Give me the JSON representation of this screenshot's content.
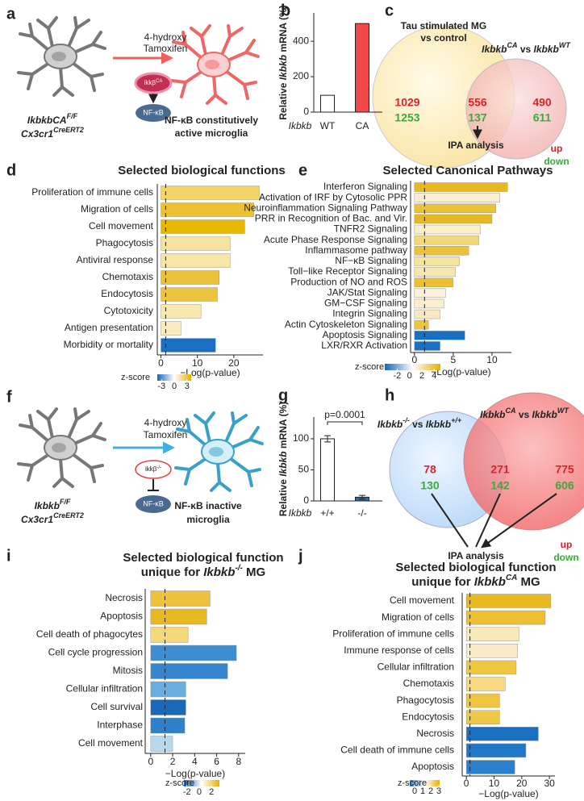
{
  "figure": {
    "a": {
      "label": "a",
      "treatment": [
        "4-hydroxy",
        "Tamoxifen"
      ],
      "gene_badge": [
        "ikkβ",
        "CA"
      ],
      "nfkb": "NF-κB",
      "genotype": [
        [
          "IkbkbCA",
          "F/F"
        ],
        [
          "Cx3cr1",
          "CreERT2"
        ]
      ],
      "outcome": [
        "NF-κB constitutively",
        "active microglia"
      ]
    },
    "c": {
      "label": "c",
      "left_title": [
        "Tau stimulated MG",
        "vs control"
      ],
      "right_title": [
        "Ikbkb",
        "CA",
        " vs ",
        "Ikbkb",
        "WT"
      ],
      "left": [
        1029,
        1253
      ],
      "both": [
        556,
        137
      ],
      "right": [
        490,
        611
      ],
      "legend": [
        "up",
        "down"
      ],
      "analysis": "IPA analysis"
    },
    "f": {
      "label": "f",
      "treatment": [
        "4-hydroxy",
        "Tamoxifen"
      ],
      "gene_badge": [
        "ikkβ",
        "-/-"
      ],
      "nfkb": "NF-κB",
      "genotype": [
        [
          "Ikbkb",
          "F/F"
        ],
        [
          "Cx3cr1",
          "CreERT2"
        ]
      ],
      "outcome": [
        "NF-κB inactive",
        "microglia"
      ]
    },
    "h": {
      "label": "h",
      "left_title": [
        "Ikbkb",
        "-/-",
        " vs ",
        "Ikbkb",
        "+/+"
      ],
      "right_title": [
        "Ikbkb",
        "CA",
        " vs ",
        "Ikbkb",
        "WT"
      ],
      "left": [
        78,
        130
      ],
      "both": [
        271,
        142
      ],
      "right": [
        775,
        606
      ],
      "legend": [
        "up",
        "down"
      ],
      "analysis": "IPA analysis"
    }
  },
  "chart_data": [
    {
      "panel": "b",
      "type": "bar",
      "ylabel": [
        "Relative ",
        "Ikbkb",
        " mRNA (%)"
      ],
      "xlabel": "Ikbkb",
      "categories": [
        "WT",
        "CA"
      ],
      "values": [
        95,
        500
      ],
      "colors": [
        "#ffffff",
        "#f04848"
      ],
      "ylim": [
        0,
        560
      ],
      "yticks": [
        0,
        200,
        400
      ]
    },
    {
      "panel": "d",
      "type": "barh",
      "title": "Selected biological functions",
      "categories": [
        "Proliferation of immune cells",
        "Migration of cells",
        "Cell movement",
        "Phagocytosis",
        "Antiviral response",
        "Chemotaxis",
        "Endocytosis",
        "Cytotoxicity",
        "Antigen presentation",
        "Morbidity or mortality"
      ],
      "values": [
        27,
        25.5,
        23,
        19,
        19,
        16,
        15.5,
        11,
        5.5,
        15
      ],
      "colors": [
        "#f2d46a",
        "#ecc232",
        "#e8b800",
        "#f7e3a0",
        "#f8e6a8",
        "#ebc23a",
        "#ecc440",
        "#f9e8b0",
        "#faecc0",
        "#1a6fc0"
      ],
      "xlim": [
        -1,
        28
      ],
      "xticks": [
        0,
        10,
        20
      ],
      "xlabel": "−Log(p-value)",
      "threshold": 1.3,
      "colorbar": {
        "label": "z-score",
        "lim": [
          -4,
          4
        ],
        "ticks": [
          -3,
          0,
          3
        ],
        "colors": [
          "#1565c0",
          "#ffffff",
          "#e6b000"
        ]
      }
    },
    {
      "panel": "e",
      "type": "barh",
      "title": "Selected Canonical Pathways",
      "categories": [
        "Interferon Signaling",
        "Activation of IRF by Cytosolic PPR",
        "Neuroinflammation Signaling Pathway",
        "PRR in Recognition of Bac. and Vir.",
        "TNFR2 Signaling",
        "Acute Phase Response Signaling",
        "Inflammasome pathway",
        "NF−κB Signaling",
        "Toll−like Receptor Signaling",
        "Production of NO and ROS",
        "JAK/Stat Signaling",
        "GM−CSF Signaling",
        "Integrin Signaling",
        "Actin Cytoskeleton Signaling",
        "Apoptosis Signaling",
        "LXR/RXR Activation"
      ],
      "values": [
        12,
        11,
        10.5,
        10,
        8.5,
        8.3,
        7,
        5.8,
        5.3,
        5,
        4,
        3.8,
        3.3,
        1.8,
        6.5,
        3.3
      ],
      "colors": [
        "#e8b820",
        "#f9eed0",
        "#ecc23a",
        "#e8b820",
        "#fbefc8",
        "#f5d878",
        "#ecc23a",
        "#f7e3a0",
        "#f8e6b0",
        "#edc030",
        "#fbf0d8",
        "#fbefd0",
        "#f9e8c0",
        "#ecc440",
        "#1a70c0",
        "#1a70c0"
      ],
      "xlim": [
        -0.5,
        12.5
      ],
      "xticks": [
        0,
        5,
        10
      ],
      "xlabel": "−Log(p-value)",
      "threshold": 1.3,
      "colorbar": {
        "label": "z-score",
        "lim": [
          -4,
          5
        ],
        "ticks": [
          -2,
          0,
          2,
          4
        ],
        "colors": [
          "#1565c0",
          "#ffffff",
          "#e6b000"
        ]
      }
    },
    {
      "panel": "g",
      "type": "bar",
      "ylabel": [
        "Relative ",
        "Ikbkb",
        " mRNA (%)"
      ],
      "xlabel": "Ikbkb",
      "categories": [
        "+/+",
        "-/-"
      ],
      "values": [
        100,
        6
      ],
      "errors": [
        5,
        3
      ],
      "colors": [
        "#ffffff",
        "#1f6fc0"
      ],
      "ylim": [
        0,
        135
      ],
      "yticks": [
        0,
        50,
        100
      ],
      "annotation": "p=0.0001"
    },
    {
      "panel": "i",
      "type": "barh",
      "title": [
        "Selected biological function",
        "unique for ",
        "Ikbkb",
        "-/-",
        " MG"
      ],
      "categories": [
        "Necrosis",
        "Apoptosis",
        "Cell death of phagocytes",
        "Cell cycle progression",
        "Mitosis",
        "Cellular infiltration",
        "Cell survival",
        "Interphase",
        "Cell movement"
      ],
      "values": [
        5.4,
        5.1,
        3.4,
        7.8,
        7,
        3.2,
        3.2,
        3.1,
        2
      ],
      "colors": [
        "#eec23c",
        "#e8b820",
        "#f5d87a",
        "#3d8ed0",
        "#3585cc",
        "#6aaee0",
        "#1a68b8",
        "#2e80c8",
        "#b8d8f0"
      ],
      "xlim": [
        -0.5,
        8.6
      ],
      "xticks": [
        0,
        2,
        4,
        6,
        8
      ],
      "xlabel": "−Log(p-value)",
      "threshold": 1.3,
      "colorbar": {
        "label": "z-score",
        "lim": [
          -2.5,
          3.3
        ],
        "ticks": [
          -2,
          0,
          2
        ],
        "colors": [
          "#1565c0",
          "#ffffff",
          "#e6b000"
        ]
      }
    },
    {
      "panel": "j",
      "type": "barh",
      "title": [
        "Selected biological function",
        "unique for ",
        "Ikbkb",
        "CA",
        " MG"
      ],
      "categories": [
        "Cell movement",
        "Migration of cells",
        "Proliferation of immune cells",
        "Immune response of cells",
        "Cellular infiltration",
        "Chemotaxis",
        "Phagocytosis",
        "Endocytosis",
        "Necrosis",
        "Cell death of immune cells",
        "Apoptosis"
      ],
      "values": [
        30.5,
        28.5,
        19,
        18.5,
        18,
        14,
        12,
        12,
        26,
        21.5,
        17.5
      ],
      "colors": [
        "#e8b820",
        "#ecc030",
        "#f9e8b8",
        "#faecc8",
        "#f0c840",
        "#f5d880",
        "#efc440",
        "#f0c848",
        "#1a70c0",
        "#2078c8",
        "#2a80cc"
      ],
      "xlim": [
        -1.5,
        32
      ],
      "xticks": [
        0,
        10,
        20,
        30
      ],
      "xlabel": "−Log(p-value)",
      "threshold": 1.3,
      "colorbar": {
        "label": "z-score",
        "lim": [
          -0.6,
          3.1
        ],
        "ticks": [
          0,
          1,
          2,
          3
        ],
        "colors": [
          "#3a80d0",
          "#ffffff",
          "#e6b000"
        ]
      }
    }
  ]
}
